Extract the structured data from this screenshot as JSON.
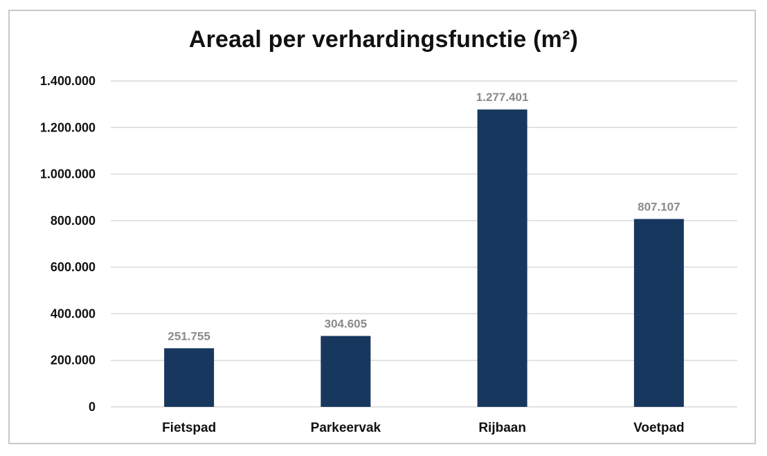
{
  "chart_data": {
    "type": "bar",
    "title": "Areaal per verhardingsfunctie (m²)",
    "categories": [
      "Fietspad",
      "Parkeervak",
      "Rijbaan",
      "Voetpad"
    ],
    "values": [
      251755,
      304605,
      1277401,
      807107
    ],
    "value_labels": [
      "251.755",
      "304.605",
      "1.277.401",
      "807.107"
    ],
    "ylim": [
      0,
      1400000
    ],
    "yticks": [
      0,
      200000,
      400000,
      600000,
      800000,
      1000000,
      1200000,
      1400000
    ],
    "ytick_labels": [
      "0",
      "200.000",
      "400.000",
      "600.000",
      "800.000",
      "1.000.000",
      "1.200.000",
      "1.400.000"
    ],
    "grid": true,
    "legend": "none",
    "colors": {
      "bar": "#17375e",
      "grid": "#d9d9d9",
      "data_label": "#8a8a8a",
      "text": "#111111"
    }
  }
}
